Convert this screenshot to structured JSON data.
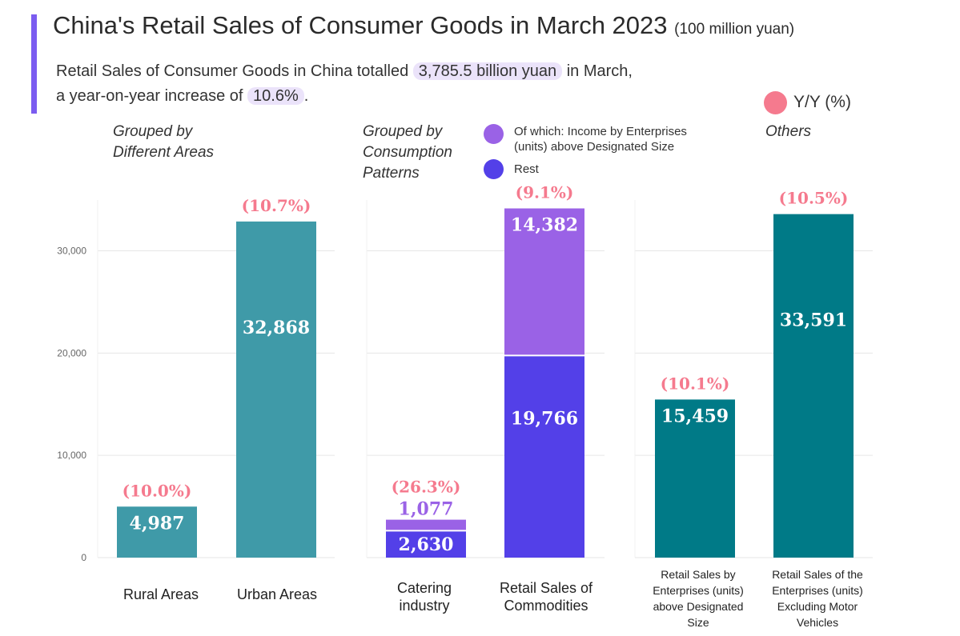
{
  "header": {
    "title": "China's Retail Sales of Consumer Goods in March 2023",
    "unit": "(100 million yuan)",
    "summary_part1": "Retail Sales of Consumer Goods in China totalled ",
    "summary_highlight1": "3,785.5 billion yuan",
    "summary_part2": " in March,",
    "summary_part3": "a year-on-year increase of ",
    "summary_highlight2": "10.6%",
    "summary_part4": "."
  },
  "legend": {
    "yy_label": "Y/Y (%)",
    "above_size_label_line1": "Of which: Income by Enterprises",
    "above_size_label_line2": "(units) above Designated Size",
    "rest_label": "Rest"
  },
  "groups": {
    "areas_line1": "Grouped by",
    "areas_line2": "Different Areas",
    "patterns_line1": "Grouped by",
    "patterns_line2": "Consumption",
    "patterns_line3": "Patterns",
    "others": "Others"
  },
  "colors": {
    "accent": "#7b5cf0",
    "areas_bar": "#3f9aa8",
    "others_bar": "#007a87",
    "above_size": "#9a62e6",
    "rest": "#5340e8",
    "yy": "#f57a8e",
    "above_size_label": "#9a62e6"
  },
  "chart_data": {
    "type": "bar",
    "ylim": [
      0,
      36000
    ],
    "y_ticks": [
      0,
      10000,
      20000,
      30000
    ],
    "y_tick_labels": [
      "0",
      "10,000",
      "20,000",
      "30,000"
    ],
    "grid": true,
    "panels": [
      {
        "title": "Grouped by Different Areas",
        "bars": [
          {
            "category": "Rural Areas",
            "segments": [
              {
                "value": 4987,
                "label": "4,987",
                "color": "#3f9aa8",
                "label_color": "#ffffff"
              }
            ],
            "yoy": "(10.0%)"
          },
          {
            "category": "Urban Areas",
            "segments": [
              {
                "value": 32868,
                "label": "32,868",
                "color": "#3f9aa8",
                "label_color": "#ffffff"
              }
            ],
            "yoy": "(10.7%)"
          }
        ]
      },
      {
        "title": "Grouped by Consumption Patterns",
        "bars": [
          {
            "category": "Catering industry",
            "segments": [
              {
                "series": "Rest",
                "value": 2630,
                "label": "2,630",
                "color": "#5340e8",
                "label_color": "#ffffff"
              },
              {
                "series": "Of which: Income by Enterprises (units) above Designated Size",
                "value": 1077,
                "label": "1,077",
                "color": "#9a62e6",
                "label_color": "#9a62e6",
                "label_outside": true
              }
            ],
            "yoy": "(26.3%)"
          },
          {
            "category": "Retail Sales of Commodities",
            "segments": [
              {
                "series": "Rest",
                "value": 19766,
                "label": "19,766",
                "color": "#5340e8",
                "label_color": "#ffffff"
              },
              {
                "series": "Of which: Income by Enterprises (units) above Designated Size",
                "value": 14382,
                "label": "14,382",
                "color": "#9a62e6",
                "label_color": "#ffffff"
              }
            ],
            "yoy": "(9.1%)"
          }
        ]
      },
      {
        "title": "Others",
        "bars": [
          {
            "category": "Retail Sales by Enterprises (units) above Designated Size",
            "segments": [
              {
                "value": 15459,
                "label": "15,459",
                "color": "#007a87",
                "label_color": "#ffffff"
              }
            ],
            "yoy": "(10.1%)"
          },
          {
            "category": "Retail Sales of the Enterprises (units) Excluding Motor Vehicles",
            "segments": [
              {
                "value": 33591,
                "label": "33,591",
                "color": "#007a87",
                "label_color": "#ffffff"
              }
            ],
            "yoy": "(10.5%)"
          }
        ]
      }
    ]
  },
  "categories_display": {
    "rural": "Rural Areas",
    "urban": "Urban Areas",
    "catering_line1": "Catering",
    "catering_line2": "industry",
    "commodities_line1": "Retail Sales of",
    "commodities_line2": "Commodities",
    "above_size_line1": "Retail Sales by",
    "above_size_line2": "Enterprises (units)",
    "above_size_line3": "above Designated",
    "above_size_line4": "Size",
    "excl_line1": "Retail Sales of the",
    "excl_line2": "Enterprises (units)",
    "excl_line3": "Excluding Motor",
    "excl_line4": "Vehicles"
  }
}
